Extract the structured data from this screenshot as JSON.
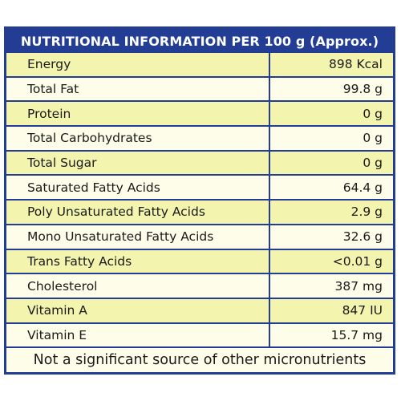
{
  "header": {
    "title": "NUTRITIONAL INFORMATION PER 100 g (Approx.)"
  },
  "colors": {
    "header_bg": "#223d93",
    "row_yellow": "#f3f4ae",
    "row_white": "#fdfdea"
  },
  "rows": [
    {
      "name": "Energy",
      "value": "898 Kcal"
    },
    {
      "name": "Total Fat",
      "value": "99.8 g"
    },
    {
      "name": "Protein",
      "value": "0 g"
    },
    {
      "name": "Total Carbohydrates",
      "value": "0 g"
    },
    {
      "name": "Total Sugar",
      "value": "0 g"
    },
    {
      "name": "Saturated Fatty Acids",
      "value": "64.4 g"
    },
    {
      "name": "Poly Unsaturated Fatty Acids",
      "value": "2.9 g"
    },
    {
      "name": "Mono Unsaturated Fatty Acids",
      "value": "32.6 g"
    },
    {
      "name": "Trans Fatty Acids",
      "value": "<0.01 g"
    },
    {
      "name": "Cholesterol",
      "value": "387 mg"
    },
    {
      "name": "Vitamin A",
      "value": "847 IU"
    },
    {
      "name": "Vitamin E",
      "value": "15.7 mg"
    }
  ],
  "footer": {
    "note": "Not a significant source of other micronutrients"
  }
}
